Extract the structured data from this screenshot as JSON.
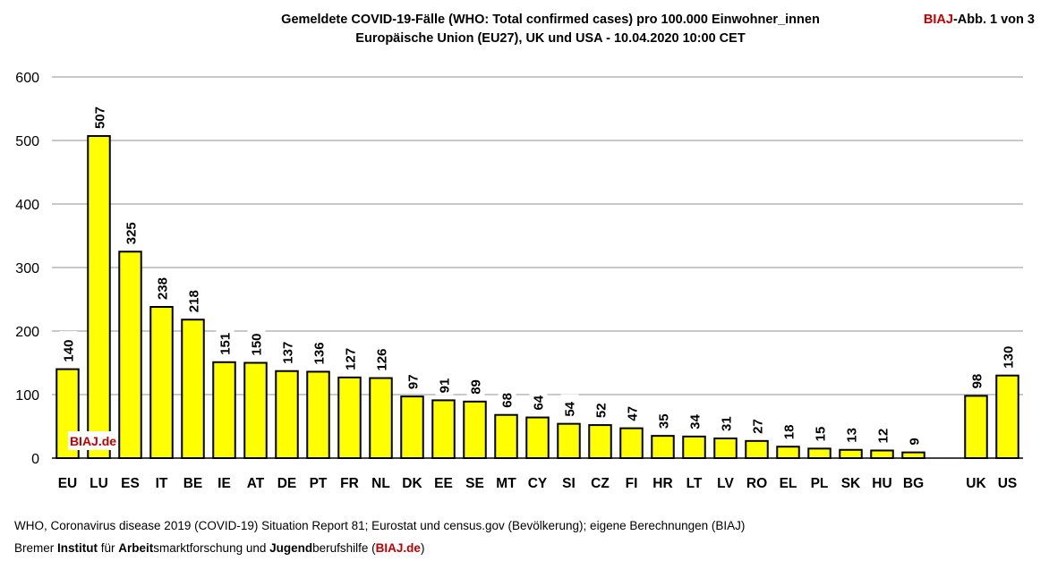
{
  "title": {
    "line1": "Gemeldete COVID-19-Fälle (WHO: Total confirmed cases) pro 100.000 Einwohner_innen",
    "line2": "Europäische Union (EU27), UK und USA - 10.04.2020 10:00 CET"
  },
  "badge": {
    "brand": "BIAJ",
    "rest": "-Abb. 1 von 3"
  },
  "watermark": "BIAJ.de",
  "source": {
    "line1": "WHO, Coronavirus disease 2019 (COVID-19) Situation Report 81; Eurostat und census.gov (Bevölkerung); eigene Berechnungen (BIAJ)",
    "line2_parts": [
      "Bremer ",
      "Institut",
      " für ",
      "Arbeit",
      "smarktforschung und ",
      "Jugend",
      "berufshilfe (",
      "BIAJ.de",
      ")"
    ]
  },
  "colors": {
    "bar_fill": "#ffff00",
    "bar_stroke": "#000000",
    "grid": "#a6a6a6",
    "brand_red": "#c00000"
  },
  "chart_data": {
    "type": "bar",
    "categories": [
      "EU",
      "LU",
      "ES",
      "IT",
      "BE",
      "IE",
      "AT",
      "DE",
      "PT",
      "FR",
      "NL",
      "DK",
      "EE",
      "SE",
      "MT",
      "CY",
      "SI",
      "CZ",
      "FI",
      "HR",
      "LT",
      "LV",
      "RO",
      "EL",
      "PL",
      "SK",
      "HU",
      "BG",
      "",
      "UK",
      "US"
    ],
    "values": [
      140,
      507,
      325,
      238,
      218,
      151,
      150,
      137,
      136,
      127,
      126,
      97,
      91,
      89,
      68,
      64,
      54,
      52,
      47,
      35,
      34,
      31,
      27,
      18,
      15,
      13,
      12,
      9,
      null,
      98,
      130
    ],
    "ylim": [
      0,
      600
    ],
    "yticks": [
      0,
      100,
      200,
      300,
      400,
      500,
      600
    ],
    "grid": true,
    "legend": "none"
  }
}
